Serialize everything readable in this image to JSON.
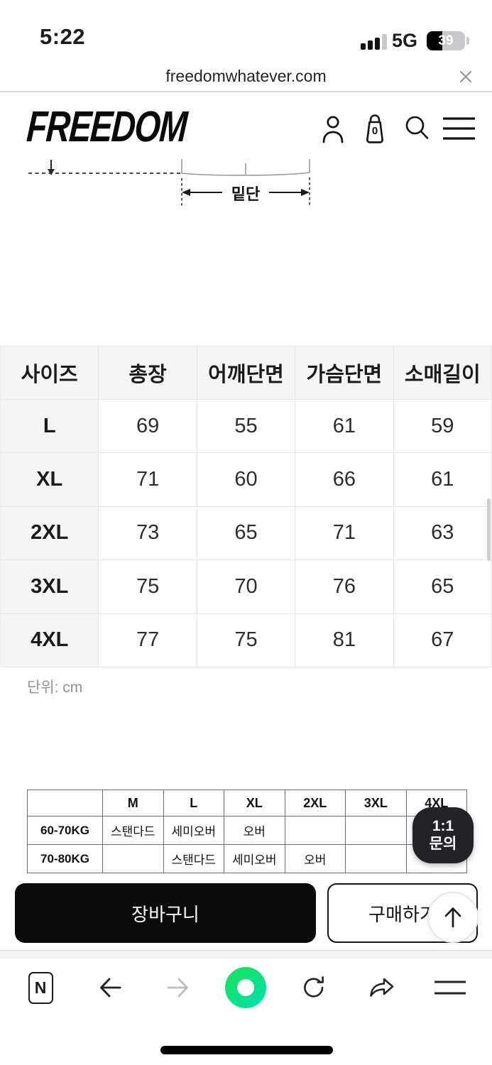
{
  "status_bar": {
    "time": "5:22",
    "network": "5G",
    "battery_percent": "39"
  },
  "url_bar": {
    "url": "freedomwhatever.com"
  },
  "header": {
    "logo": "FREEDOM",
    "cart_count": "0"
  },
  "diagram": {
    "hem_label": "밑단"
  },
  "size_table": {
    "columns": [
      "사이즈",
      "총장",
      "어깨단면",
      "가슴단면",
      "소매길이"
    ],
    "rows": [
      [
        "L",
        "69",
        "55",
        "61",
        "59"
      ],
      [
        "XL",
        "71",
        "60",
        "66",
        "61"
      ],
      [
        "2XL",
        "73",
        "65",
        "71",
        "63"
      ],
      [
        "3XL",
        "75",
        "70",
        "76",
        "65"
      ],
      [
        "4XL",
        "77",
        "75",
        "81",
        "67"
      ]
    ],
    "unit_note": "단위: cm"
  },
  "fit_table": {
    "columns": [
      "",
      "M",
      "L",
      "XL",
      "2XL",
      "3XL",
      "4XL"
    ],
    "rows": [
      [
        "60-70KG",
        "스탠다드",
        "세미오버",
        "오버",
        "",
        "",
        ""
      ],
      [
        "70-80KG",
        "",
        "스탠다드",
        "세미오버",
        "오버",
        "",
        ""
      ]
    ]
  },
  "floating": {
    "inquiry_line1": "1:1",
    "inquiry_line2": "문의"
  },
  "action_bar": {
    "cart_label": "장바구니",
    "buy_label": "구매하기"
  },
  "browser_toolbar": {
    "naver_badge": "N"
  },
  "colors": {
    "accent_green_start": "#14e362",
    "accent_green_end": "#00e2a8",
    "fab_bg": "#232327",
    "button_black": "#0b0b0b"
  }
}
